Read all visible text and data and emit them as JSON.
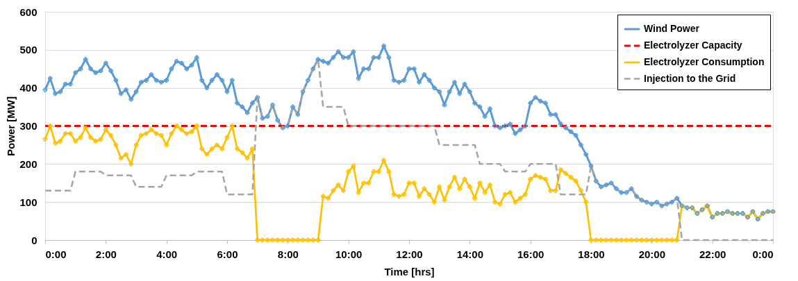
{
  "chart_data": {
    "type": "line",
    "xlabel": "Time [hrs]",
    "ylabel": "Power [MW]",
    "x": [
      0,
      0.1667,
      0.3333,
      0.5,
      0.6667,
      0.8333,
      1,
      1.1667,
      1.3333,
      1.5,
      1.6667,
      1.8333,
      2,
      2.1667,
      2.3333,
      2.5,
      2.6667,
      2.8333,
      3,
      3.1667,
      3.3333,
      3.5,
      3.6667,
      3.8333,
      4,
      4.1667,
      4.3333,
      4.5,
      4.6667,
      4.8333,
      5,
      5.1667,
      5.3333,
      5.5,
      5.6667,
      5.8333,
      6,
      6.1667,
      6.3333,
      6.5,
      6.6667,
      6.8333,
      7,
      7.1667,
      7.3333,
      7.5,
      7.6667,
      7.8333,
      8,
      8.1667,
      8.3333,
      8.5,
      8.6667,
      8.8333,
      9,
      9.1667,
      9.3333,
      9.5,
      9.6667,
      9.8333,
      10,
      10.1667,
      10.3333,
      10.5,
      10.6667,
      10.8333,
      11,
      11.1667,
      11.3333,
      11.5,
      11.6667,
      11.8333,
      12,
      12.1667,
      12.3333,
      12.5,
      12.6667,
      12.8333,
      13,
      13.1667,
      13.3333,
      13.5,
      13.6667,
      13.8333,
      14,
      14.1667,
      14.3333,
      14.5,
      14.6667,
      14.8333,
      15,
      15.1667,
      15.3333,
      15.5,
      15.6667,
      15.8333,
      16,
      16.1667,
      16.3333,
      16.5,
      16.6667,
      16.8333,
      17,
      17.1667,
      17.3333,
      17.5,
      17.6667,
      17.8333,
      18,
      18.1667,
      18.3333,
      18.5,
      18.6667,
      18.8333,
      19,
      19.1667,
      19.3333,
      19.5,
      19.6667,
      19.8333,
      20,
      20.1667,
      20.3333,
      20.5,
      20.6667,
      20.8333,
      21,
      21.1667,
      21.3333,
      21.5,
      21.6667,
      21.8333,
      22,
      22.1667,
      22.3333,
      22.5,
      22.6667,
      22.8333,
      23,
      23.1667,
      23.3333,
      23.5,
      23.6667,
      23.8333,
      24
    ],
    "series": [
      {
        "name": "Wind Power",
        "type": "line",
        "color": "#5b9bd5",
        "marker": "cross",
        "line_style": "solid",
        "values": [
          395,
          425,
          385,
          390,
          410,
          410,
          440,
          450,
          475,
          450,
          440,
          445,
          465,
          445,
          420,
          385,
          395,
          370,
          390,
          415,
          420,
          435,
          420,
          415,
          420,
          450,
          470,
          465,
          450,
          460,
          480,
          420,
          400,
          420,
          435,
          420,
          390,
          420,
          360,
          350,
          335,
          360,
          375,
          320,
          325,
          355,
          315,
          295,
          300,
          350,
          330,
          390,
          420,
          450,
          475,
          470,
          465,
          480,
          495,
          480,
          480,
          495,
          425,
          450,
          450,
          480,
          480,
          510,
          480,
          420,
          415,
          420,
          450,
          450,
          415,
          435,
          420,
          400,
          390,
          355,
          390,
          415,
          385,
          410,
          390,
          360,
          350,
          325,
          345,
          300,
          295,
          300,
          305,
          280,
          290,
          300,
          360,
          375,
          365,
          360,
          330,
          330,
          305,
          295,
          285,
          275,
          250,
          225,
          195,
          155,
          140,
          145,
          150,
          135,
          125,
          125,
          135,
          115,
          105,
          100,
          95,
          100,
          90,
          95,
          100,
          110,
          90,
          85,
          85,
          70,
          80,
          90,
          60,
          70,
          70,
          75,
          70,
          70,
          70,
          60,
          75,
          55,
          70,
          75,
          75
        ]
      },
      {
        "name": "Electrolyzer Capacity",
        "type": "line",
        "color": "#ff0000",
        "marker": "none",
        "line_style": "dashed",
        "x": [
          0,
          24
        ],
        "values": [
          300,
          300
        ]
      },
      {
        "name": "Electrolyzer Consumption",
        "type": "line",
        "color": "#ffc000",
        "marker": "cross",
        "line_style": "solid",
        "values": [
          265,
          300,
          255,
          260,
          280,
          280,
          260,
          270,
          295,
          270,
          260,
          265,
          290,
          275,
          250,
          215,
          225,
          200,
          250,
          275,
          280,
          290,
          280,
          275,
          250,
          280,
          300,
          290,
          280,
          285,
          300,
          240,
          225,
          240,
          250,
          240,
          270,
          300,
          240,
          230,
          215,
          240,
          0,
          0,
          0,
          0,
          0,
          0,
          0,
          0,
          0,
          0,
          0,
          0,
          0,
          115,
          110,
          130,
          145,
          130,
          180,
          195,
          125,
          150,
          150,
          180,
          180,
          210,
          180,
          120,
          115,
          120,
          150,
          150,
          115,
          135,
          120,
          100,
          140,
          105,
          140,
          165,
          135,
          160,
          140,
          110,
          150,
          125,
          145,
          100,
          95,
          120,
          125,
          100,
          110,
          120,
          160,
          170,
          165,
          160,
          130,
          130,
          185,
          175,
          165,
          155,
          130,
          100,
          0,
          0,
          0,
          0,
          0,
          0,
          0,
          0,
          0,
          0,
          0,
          0,
          0,
          0,
          0,
          0,
          0,
          0,
          90,
          85,
          85,
          70,
          80,
          90,
          60,
          70,
          70,
          75,
          70,
          70,
          70,
          60,
          75,
          55,
          70,
          75,
          75
        ]
      },
      {
        "name": "Injection to the Grid",
        "type": "line",
        "color": "#a5a5a5",
        "marker": "none",
        "line_style": "dashed",
        "x": [
          0,
          0.8333,
          1,
          1.8333,
          2,
          2.8333,
          3,
          3.8333,
          4,
          4.8333,
          5,
          5.8333,
          6,
          6.8333,
          7,
          7.1667,
          7.3333,
          7.5,
          7.6667,
          7.8333,
          8,
          8.1667,
          8.3333,
          8.5,
          8.6667,
          8.8333,
          9,
          9.1667,
          9.8333,
          10,
          12.8333,
          13,
          14.1667,
          14.3333,
          15,
          15.1667,
          15.8333,
          16,
          16.8333,
          17,
          17.8333,
          18,
          18.1667,
          18.3333,
          18.5,
          18.6667,
          18.8333,
          19,
          19.1667,
          19.3333,
          19.5,
          19.6667,
          19.8333,
          20,
          20.1667,
          20.3333,
          20.5,
          20.6667,
          20.8333,
          21,
          24
        ],
        "values": [
          130,
          130,
          180,
          180,
          170,
          170,
          140,
          140,
          170,
          170,
          180,
          180,
          120,
          120,
          375,
          320,
          325,
          355,
          315,
          295,
          300,
          350,
          330,
          390,
          420,
          450,
          475,
          350,
          350,
          300,
          300,
          250,
          250,
          200,
          200,
          180,
          180,
          200,
          200,
          120,
          120,
          195,
          155,
          140,
          145,
          150,
          135,
          125,
          125,
          135,
          115,
          105,
          100,
          95,
          100,
          90,
          95,
          100,
          110,
          0,
          0
        ]
      }
    ],
    "xlim": [
      0,
      24
    ],
    "xticks": [
      {
        "value": 0,
        "label": "0:00"
      },
      {
        "value": 2,
        "label": "2:00"
      },
      {
        "value": 4,
        "label": "4:00"
      },
      {
        "value": 6,
        "label": "6:00"
      },
      {
        "value": 8,
        "label": "8:00"
      },
      {
        "value": 10,
        "label": "10:00"
      },
      {
        "value": 12,
        "label": "12:00"
      },
      {
        "value": 14,
        "label": "14:00"
      },
      {
        "value": 16,
        "label": "16:00"
      },
      {
        "value": 18,
        "label": "18:00"
      },
      {
        "value": 20,
        "label": "20:00"
      },
      {
        "value": 22,
        "label": "22:00"
      },
      {
        "value": 24,
        "label": "0:00"
      }
    ],
    "ylim": [
      0,
      600
    ],
    "yticks": [
      0,
      100,
      200,
      300,
      400,
      500,
      600
    ],
    "grid": "y",
    "legend": "top right"
  }
}
